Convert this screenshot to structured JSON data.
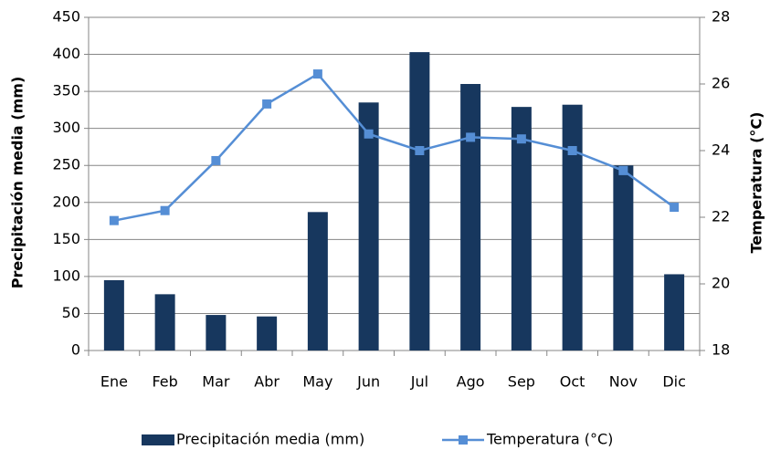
{
  "chart_data": {
    "type": "bar",
    "categories": [
      "Ene",
      "Feb",
      "Mar",
      "Abr",
      "May",
      "Jun",
      "Jul",
      "Ago",
      "Sep",
      "Oct",
      "Nov",
      "Dic"
    ],
    "series": [
      {
        "name": "Precipitación media (mm)",
        "type": "bar",
        "color": "#17375e",
        "values": [
          95,
          76,
          48,
          46,
          187,
          335,
          403,
          360,
          329,
          332,
          250,
          103
        ]
      },
      {
        "name": "Temperatura (°C)",
        "type": "line",
        "axis": "y2",
        "color": "#558ed5",
        "values": [
          21.9,
          22.2,
          23.7,
          25.4,
          26.3,
          24.5,
          24.0,
          24.4,
          24.35,
          24.0,
          23.4,
          22.3
        ]
      }
    ],
    "ylabel": "Precipitación media  (mm)",
    "y2label": "Temperatura  (°C)",
    "ylim": [
      0,
      450
    ],
    "yticks": [
      0,
      50,
      100,
      150,
      200,
      250,
      300,
      350,
      400,
      450
    ],
    "y2lim": [
      18,
      28
    ],
    "y2ticks": [
      18,
      20,
      22,
      24,
      26,
      28
    ],
    "grid": true,
    "legend": "bottom"
  }
}
